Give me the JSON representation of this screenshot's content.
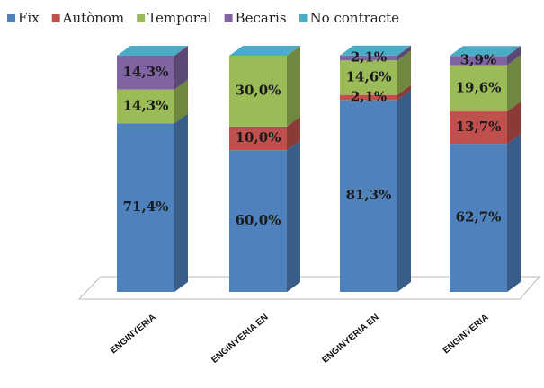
{
  "chart_data": {
    "type": "stacked_bar_3d",
    "categories": [
      "ENGINYERIA",
      "ENGINYERIA EN",
      "ENGINYERIA EN",
      "ENGINYERIA"
    ],
    "series": [
      {
        "name": "Fix",
        "color": "#4f81bd",
        "values": [
          71.4,
          60.0,
          81.3,
          62.7
        ],
        "value_labels": [
          "71,4%",
          "60,0%",
          "81,3%",
          "62,7%"
        ]
      },
      {
        "name": "Autònom",
        "color": "#c0504d",
        "values": [
          0,
          10.0,
          2.1,
          13.7
        ],
        "value_labels": [
          null,
          "10,0%",
          "2,1%",
          "13,7%"
        ]
      },
      {
        "name": "Temporal",
        "color": "#9bbb59",
        "values": [
          14.3,
          30.0,
          14.6,
          19.6
        ],
        "value_labels": [
          "14,3%",
          "30,0%",
          "14,6%",
          "19,6%"
        ]
      },
      {
        "name": "Becaris",
        "color": "#8064a2",
        "values": [
          14.3,
          0,
          2.1,
          3.9
        ],
        "value_labels": [
          "14,3%",
          null,
          "2,1%",
          "3,9%"
        ]
      },
      {
        "name": "No contracte",
        "color": "#4bacc6",
        "values": [
          0,
          0,
          0,
          0
        ],
        "value_labels": [
          null,
          null,
          null,
          null
        ]
      }
    ],
    "ylim": [
      0,
      100
    ],
    "legend": "top"
  }
}
